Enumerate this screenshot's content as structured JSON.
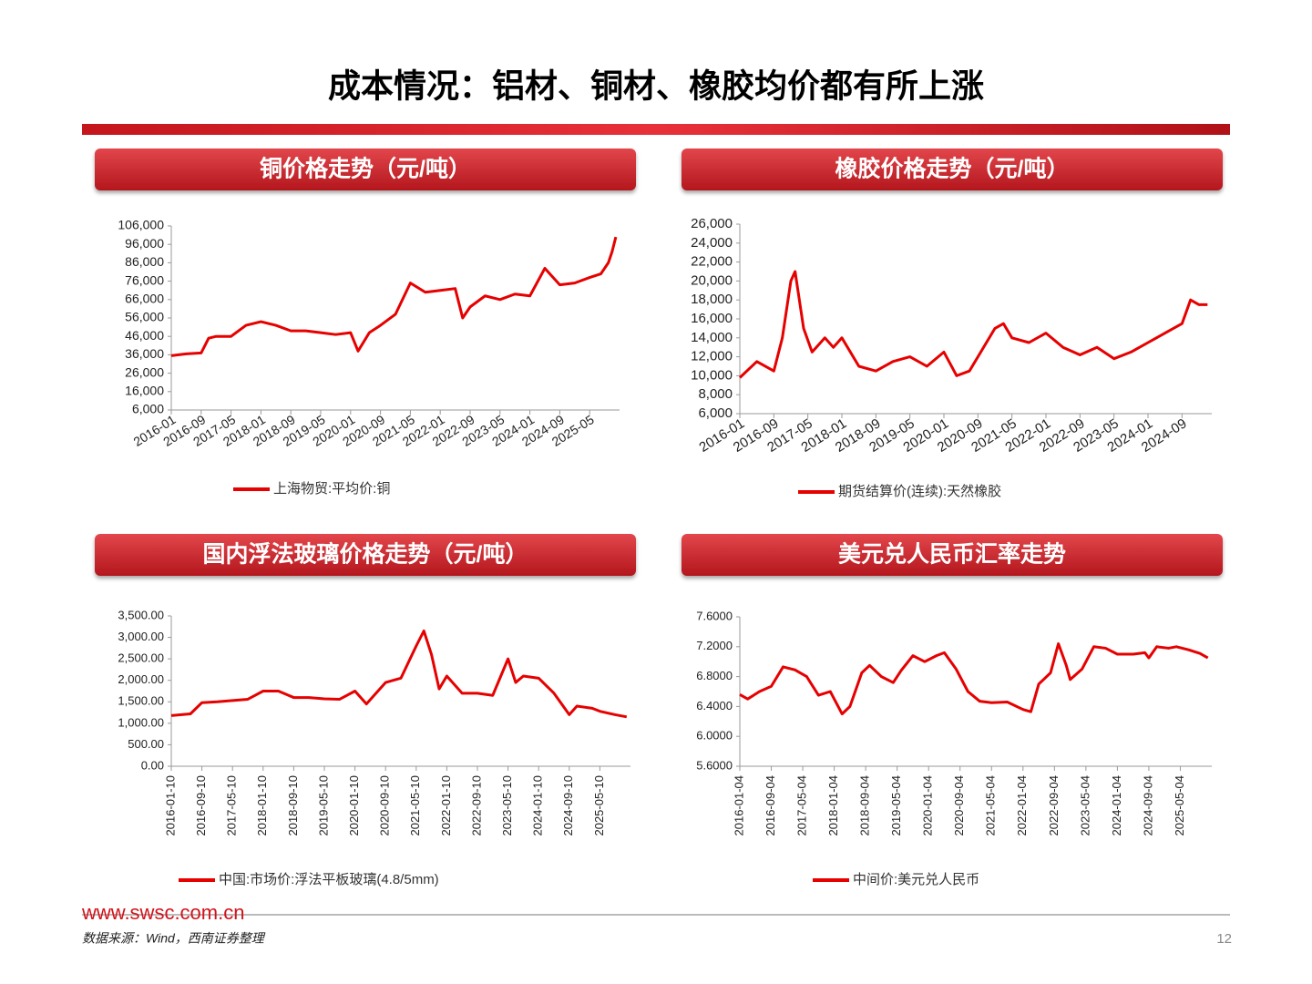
{
  "header": {
    "title": "成本情况：铝材、铜材、橡胶均价都有所上涨"
  },
  "chart_data": [
    {
      "type": "line",
      "title": "铜价格走势（元/吨）",
      "x": [
        "2016-01",
        "2016-05",
        "2016-09",
        "2016-11",
        "2017-01",
        "2017-05",
        "2017-09",
        "2018-01",
        "2018-05",
        "2018-09",
        "2019-01",
        "2019-05",
        "2019-09",
        "2020-01",
        "2020-03",
        "2020-06",
        "2020-09",
        "2021-01",
        "2021-05",
        "2021-09",
        "2022-01",
        "2022-05",
        "2022-07",
        "2022-09",
        "2023-01",
        "2023-05",
        "2023-09",
        "2024-01",
        "2024-05",
        "2024-09",
        "2025-01",
        "2025-05",
        "2025-08",
        "2025-10",
        "2025-11",
        "2025-12"
      ],
      "series": [
        {
          "name": "上海物贸:平均价:铜",
          "color": "#e60000",
          "values": [
            35500,
            36500,
            37000,
            45000,
            46000,
            46000,
            52000,
            54000,
            52000,
            49000,
            49000,
            48000,
            47000,
            48000,
            38000,
            48000,
            52000,
            58000,
            75000,
            70000,
            71000,
            72000,
            56000,
            62000,
            68000,
            66000,
            69000,
            68000,
            83000,
            74000,
            75000,
            78000,
            80000,
            86000,
            92000,
            100000
          ]
        }
      ],
      "xlim": [
        "2016-01",
        "2026-01"
      ],
      "xticks": [
        "2016-01",
        "2016-09",
        "2017-05",
        "2018-01",
        "2018-09",
        "2019-05",
        "2020-01",
        "2020-09",
        "2021-05",
        "2022-01",
        "2022-09",
        "2023-05",
        "2024-01",
        "2024-09",
        "2025-05"
      ],
      "ylim": [
        6000,
        106000
      ],
      "yticks": [
        {
          "value": 6000,
          "label": "6,000"
        },
        {
          "value": 16000,
          "label": "16,000"
        },
        {
          "value": 26000,
          "label": "26,000"
        },
        {
          "value": 36000,
          "label": "36,000"
        },
        {
          "value": 46000,
          "label": "46,000"
        },
        {
          "value": 56000,
          "label": "56,000"
        },
        {
          "value": 66000,
          "label": "66,000"
        },
        {
          "value": 76000,
          "label": "76,000"
        },
        {
          "value": 86000,
          "label": "86,000"
        },
        {
          "value": 96000,
          "label": "96,000"
        },
        {
          "value": 106000,
          "label": "106,000"
        }
      ],
      "grid": false
    },
    {
      "type": "line",
      "title": "橡胶价格走势（元/吨）",
      "x": [
        "2016-01",
        "2016-05",
        "2016-09",
        "2016-11",
        "2017-01",
        "2017-02",
        "2017-04",
        "2017-06",
        "2017-09",
        "2017-11",
        "2018-01",
        "2018-05",
        "2018-09",
        "2019-01",
        "2019-05",
        "2019-09",
        "2020-01",
        "2020-04",
        "2020-07",
        "2020-09",
        "2021-01",
        "2021-03",
        "2021-05",
        "2021-09",
        "2022-01",
        "2022-05",
        "2022-09",
        "2023-01",
        "2023-05",
        "2023-09",
        "2024-01",
        "2024-05",
        "2024-09",
        "2024-11",
        "2025-01",
        "2025-03"
      ],
      "series": [
        {
          "name": "期货结算价(连续):天然橡胶",
          "color": "#e60000",
          "values": [
            9800,
            11500,
            10500,
            14000,
            20000,
            21000,
            15000,
            12500,
            14000,
            13000,
            14000,
            11000,
            10500,
            11500,
            12000,
            11000,
            12500,
            10000,
            10500,
            12000,
            15000,
            15500,
            14000,
            13500,
            14500,
            13000,
            12200,
            13000,
            11800,
            12500,
            13500,
            14500,
            15500,
            18000,
            17500,
            17500
          ]
        }
      ],
      "xlim": [
        "2016-01",
        "2025-04"
      ],
      "xticks": [
        "2016-01",
        "2016-09",
        "2017-05",
        "2018-01",
        "2018-09",
        "2019-05",
        "2020-01",
        "2020-09",
        "2021-05",
        "2022-01",
        "2022-09",
        "2023-05",
        "2024-01",
        "2024-09"
      ],
      "ylim": [
        6000,
        26000
      ],
      "yticks": [
        {
          "value": 6000,
          "label": "6,000"
        },
        {
          "value": 8000,
          "label": "8,000"
        },
        {
          "value": 10000,
          "label": "10,000"
        },
        {
          "value": 12000,
          "label": "12,000"
        },
        {
          "value": 14000,
          "label": "14,000"
        },
        {
          "value": 16000,
          "label": "16,000"
        },
        {
          "value": 18000,
          "label": "18,000"
        },
        {
          "value": 20000,
          "label": "20,000"
        },
        {
          "value": 22000,
          "label": "22,000"
        },
        {
          "value": 24000,
          "label": "24,000"
        },
        {
          "value": 26000,
          "label": "26,000"
        }
      ],
      "grid": false
    },
    {
      "type": "line",
      "title": "国内浮法玻璃价格走势（元/吨）",
      "x": [
        "2016-01-10",
        "2016-06-10",
        "2016-09-10",
        "2017-01-10",
        "2017-05-10",
        "2017-09-10",
        "2018-01-10",
        "2018-05-10",
        "2018-09-10",
        "2019-01-10",
        "2019-05-10",
        "2019-09-10",
        "2020-01-10",
        "2020-04-10",
        "2020-07-10",
        "2020-09-10",
        "2021-01-10",
        "2021-05-10",
        "2021-07-10",
        "2021-09-10",
        "2021-11-10",
        "2022-01-10",
        "2022-05-10",
        "2022-09-10",
        "2023-01-10",
        "2023-05-10",
        "2023-07-10",
        "2023-09-10",
        "2024-01-10",
        "2024-05-10",
        "2024-07-10",
        "2024-09-10",
        "2024-11-10",
        "2025-03-10",
        "2025-05-10",
        "2025-09-10",
        "2025-12-10"
      ],
      "series": [
        {
          "name": "中国:市场价:浮法平板玻璃(4.8/5mm)",
          "color": "#e60000",
          "values": [
            1180,
            1220,
            1480,
            1500,
            1530,
            1560,
            1750,
            1750,
            1600,
            1600,
            1570,
            1560,
            1750,
            1450,
            1750,
            1950,
            2050,
            2800,
            3150,
            2600,
            1800,
            2100,
            1700,
            1700,
            1650,
            2500,
            1950,
            2100,
            2050,
            1700,
            1450,
            1200,
            1400,
            1350,
            1280,
            1200,
            1150
          ]
        }
      ],
      "xlim": [
        "2016-01-10",
        "2026-01-10"
      ],
      "xticks": [
        "2016-01-10",
        "2016-09-10",
        "2017-05-10",
        "2018-01-10",
        "2018-09-10",
        "2019-05-10",
        "2020-01-10",
        "2020-09-10",
        "2021-05-10",
        "2022-01-10",
        "2022-09-10",
        "2023-05-10",
        "2024-01-10",
        "2024-09-10",
        "2025-05-10"
      ],
      "ylim": [
        0,
        3500
      ],
      "yticks": [
        {
          "value": 0,
          "label": "0.00"
        },
        {
          "value": 500,
          "label": "500.00"
        },
        {
          "value": 1000,
          "label": "1,000.00"
        },
        {
          "value": 1500,
          "label": "1,500.00"
        },
        {
          "value": 2000,
          "label": "2,000.00"
        },
        {
          "value": 2500,
          "label": "2,500.00"
        },
        {
          "value": 3000,
          "label": "3,000.00"
        },
        {
          "value": 3500,
          "label": "3,500.00"
        }
      ],
      "grid": false
    },
    {
      "type": "line",
      "title": "美元兑人民币汇率走势",
      "x": [
        "2016-01-04",
        "2016-03-04",
        "2016-06-04",
        "2016-09-04",
        "2016-12-04",
        "2017-03-04",
        "2017-06-04",
        "2017-09-04",
        "2017-12-04",
        "2018-03-04",
        "2018-05-04",
        "2018-08-04",
        "2018-10-04",
        "2019-01-04",
        "2019-04-04",
        "2019-06-04",
        "2019-09-04",
        "2019-12-04",
        "2020-03-04",
        "2020-05-04",
        "2020-08-04",
        "2020-11-04",
        "2021-02-04",
        "2021-05-04",
        "2021-09-04",
        "2022-01-04",
        "2022-03-04",
        "2022-05-04",
        "2022-08-04",
        "2022-10-04",
        "2022-12-04",
        "2023-01-04",
        "2023-04-04",
        "2023-07-04",
        "2023-10-04",
        "2024-01-04",
        "2024-05-04",
        "2024-08-04",
        "2024-09-04",
        "2024-11-04",
        "2025-02-04",
        "2025-04-04",
        "2025-07-04",
        "2025-10-04",
        "2025-12-04"
      ],
      "series": [
        {
          "name": "中间价:美元兑人民币",
          "color": "#e60000",
          "values": [
            6.56,
            6.5,
            6.6,
            6.67,
            6.93,
            6.89,
            6.8,
            6.55,
            6.6,
            6.3,
            6.4,
            6.85,
            6.95,
            6.8,
            6.72,
            6.88,
            7.08,
            7.0,
            7.08,
            7.12,
            6.9,
            6.6,
            6.47,
            6.45,
            6.46,
            6.36,
            6.33,
            6.7,
            6.85,
            7.24,
            6.95,
            6.76,
            6.9,
            7.2,
            7.18,
            7.1,
            7.1,
            7.12,
            7.05,
            7.2,
            7.18,
            7.2,
            7.16,
            7.11,
            7.05
          ]
        }
      ],
      "xlim": [
        "2016-01-04",
        "2026-01-04"
      ],
      "xticks": [
        "2016-01-04",
        "2016-09-04",
        "2017-05-04",
        "2018-01-04",
        "2018-09-04",
        "2019-05-04",
        "2020-01-04",
        "2020-09-04",
        "2021-05-04",
        "2022-01-04",
        "2022-09-04",
        "2023-05-04",
        "2024-01-04",
        "2024-09-04",
        "2025-05-04"
      ],
      "ylim": [
        5.6,
        7.6
      ],
      "yticks": [
        {
          "value": 5.6,
          "label": "5.6000"
        },
        {
          "value": 6.0,
          "label": "6.0000"
        },
        {
          "value": 6.4,
          "label": "6.4000"
        },
        {
          "value": 6.8,
          "label": "6.8000"
        },
        {
          "value": 7.2,
          "label": "7.2000"
        },
        {
          "value": 7.6,
          "label": "7.6000"
        }
      ],
      "grid": false
    }
  ],
  "footer": {
    "website": "www.swsc.com.cn",
    "source": "数据来源：Wind，西南证券整理",
    "page": "12"
  }
}
